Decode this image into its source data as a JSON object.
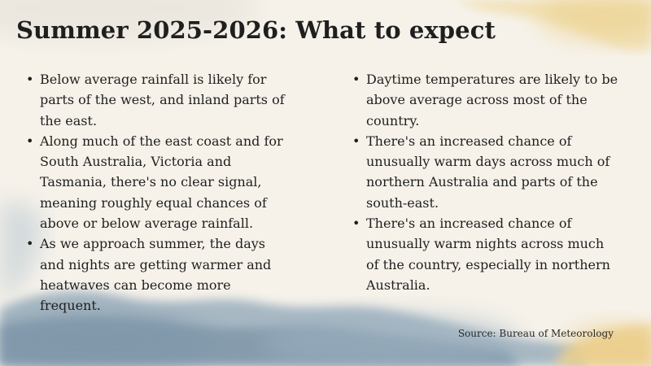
{
  "title": "Summer 2025-2026: What to expect",
  "left_column": {
    "items": [
      {
        "text": "Below average rainfall is likely for parts of the west, and inland parts of the east."
      },
      {
        "text": "Along much of the east coast and for South Australia, Victoria and Tasmania, there's no clear signal, meaning roughly equal chances of above or below average rainfall."
      },
      {
        "text": "As we approach summer, the days and nights are getting warmer and heatwaves can become more frequent."
      }
    ]
  },
  "right_column": {
    "items": [
      {
        "text": "Daytime temperatures are likely to be above average across most of the country."
      },
      {
        "text": "There's an increased chance of unusually warm days across much of northern Australia and parts of the south-east."
      },
      {
        "text": "There's an increased chance of unusually warm nights across much of the country, especially in northern Australia."
      }
    ]
  },
  "source": "Source: Bureau of Meteorology",
  "colors": {
    "background": "#f6f2ea",
    "text": "#1f1f1f",
    "watercolor_blue": "#8fa6b8",
    "watercolor_yellow": "#f0d79a"
  },
  "bullet_glyph": "•"
}
